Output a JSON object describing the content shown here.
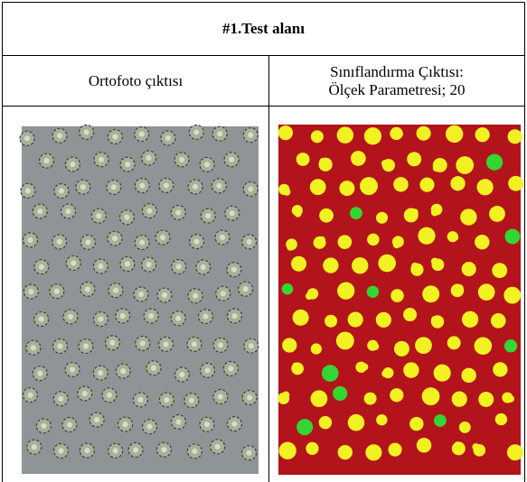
{
  "table": {
    "title": "#1.Test alanı",
    "columns": [
      {
        "lines": [
          "Ortofoto çıktısı"
        ]
      },
      {
        "lines": [
          "Sınıflandırma Çıktısı:",
          "Ölçek Parametresi; 20"
        ]
      }
    ]
  }
}
